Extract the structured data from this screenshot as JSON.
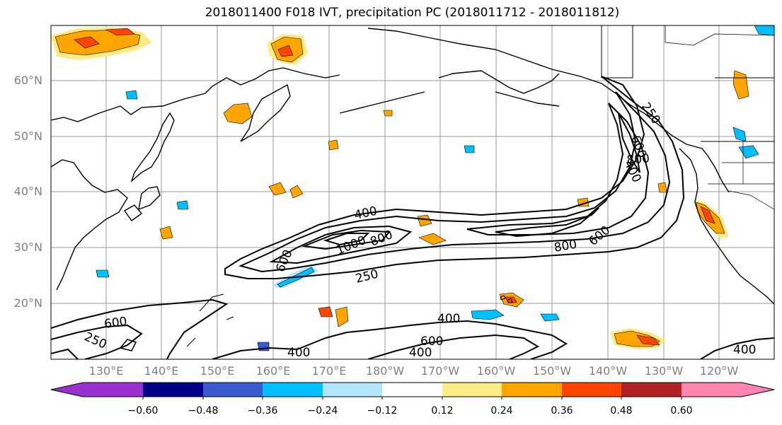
{
  "title": "2018011400 F018 IVT, precipitation PC (2018011712 - 2018011812)",
  "map": {
    "lat_labels": [
      "60°N",
      "50°N",
      "40°N",
      "30°N",
      "20°N"
    ],
    "lon_labels": [
      "130°E",
      "140°E",
      "150°E",
      "160°E",
      "170°E",
      "180°W",
      "170°W",
      "160°W",
      "150°W",
      "140°W",
      "130°W",
      "120°W"
    ],
    "contour_labels": [
      "400",
      "1000",
      "800",
      "600",
      "250",
      "800",
      "600",
      "600",
      "800",
      "400",
      "600",
      "250",
      "400",
      "600",
      "400",
      "400",
      "250",
      "400"
    ],
    "colors": {
      "coast": "#000000",
      "grid": "#9a9a9a",
      "contour": "#000000"
    }
  },
  "colorbar": {
    "tick_labels": [
      "−0.60",
      "−0.48",
      "−0.36",
      "−0.24",
      "−0.12",
      "0.12",
      "0.24",
      "0.36",
      "0.48",
      "0.60"
    ],
    "colors": [
      "#9b30d0",
      "#00008b",
      "#3a5bcf",
      "#00bfff",
      "#b3e5ff",
      "#ffffff",
      "#ffeb85",
      "#ffa500",
      "#ff4500",
      "#b22222",
      "#ff85b0"
    ]
  }
}
